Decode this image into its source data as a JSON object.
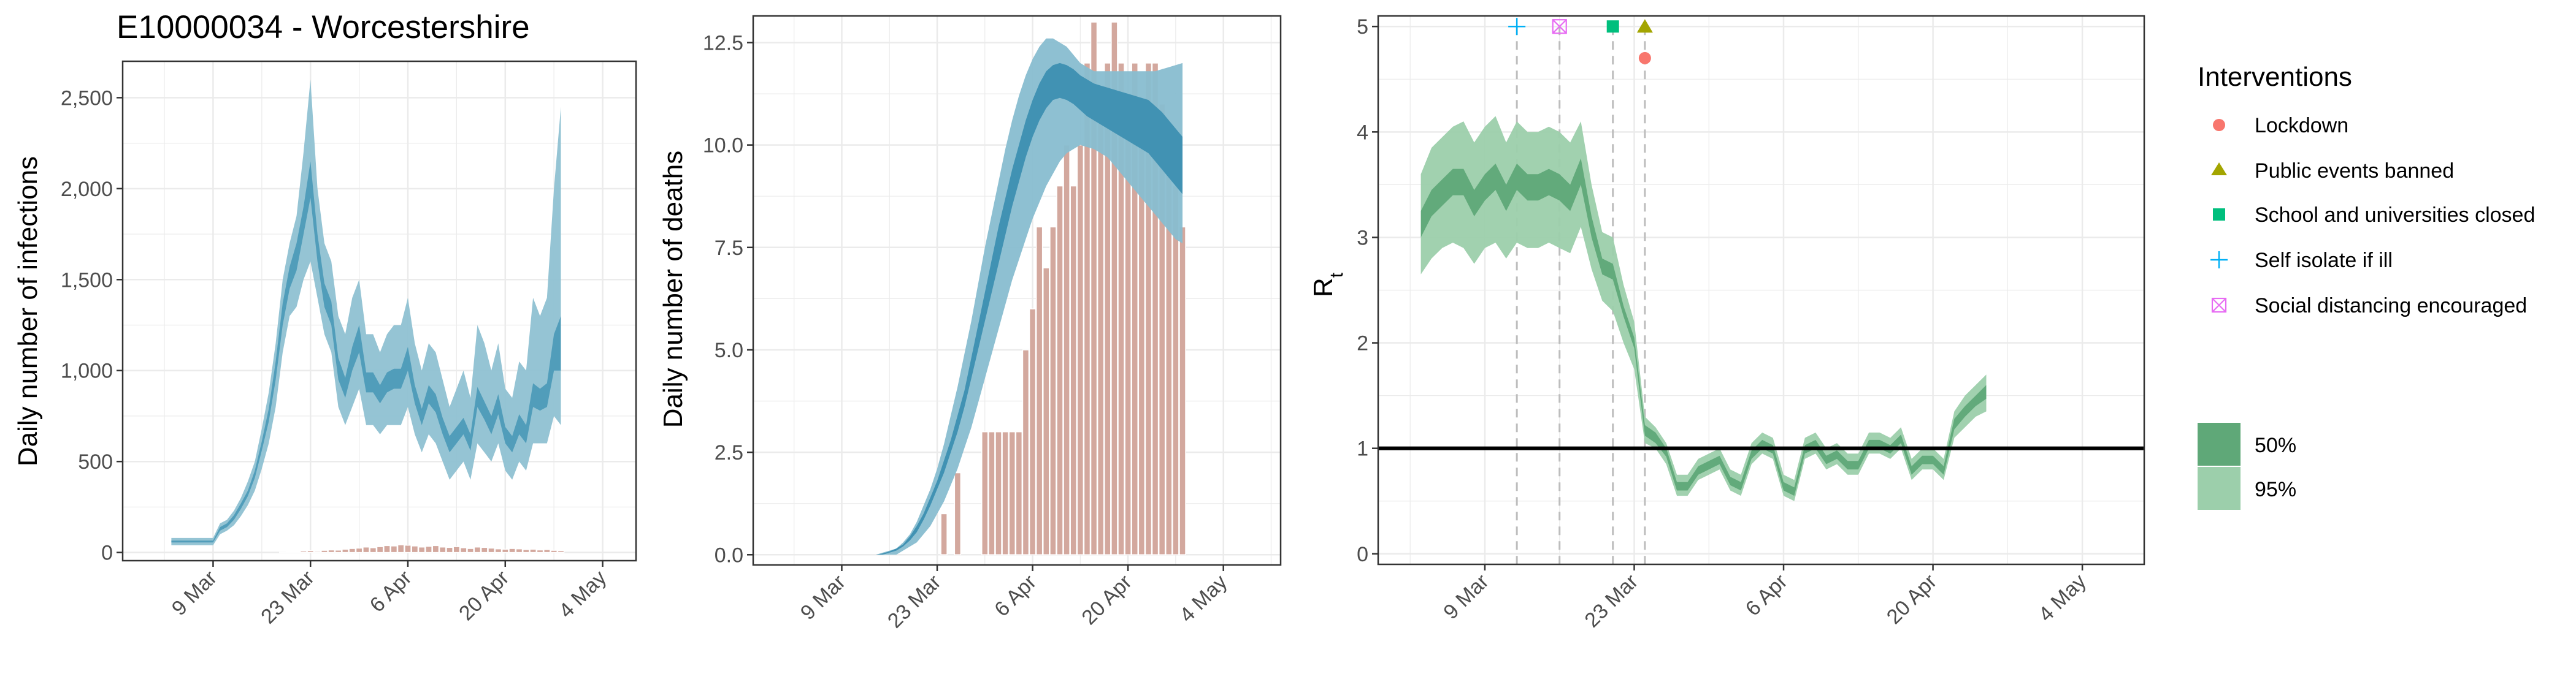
{
  "region_title": "E10000034 - Worcestershire",
  "colors": {
    "infections_95": "#8fc1d2",
    "infections_50": "#4d9bb8",
    "deaths_95": "#88bdd0",
    "deaths_50": "#3d8fb1",
    "rt_95": "#9ccfab",
    "rt_50": "#5fa878",
    "bar_fill": "#d3a89e",
    "bar_stroke": "#ffffff",
    "grid": "#ebebeb",
    "lockdown": "#f8766d",
    "public_events": "#a3a500",
    "school": "#00bf7d",
    "self_isolate": "#00b0f6",
    "social_distancing": "#e76bf3"
  },
  "legend": {
    "interventions_title": "Interventions",
    "items": [
      {
        "label": "Lockdown",
        "icon": "circle-icon"
      },
      {
        "label": "Public events banned",
        "icon": "triangle-icon"
      },
      {
        "label": "School and universities closed",
        "icon": "square-icon"
      },
      {
        "label": "Self isolate if ill",
        "icon": "plus-icon"
      },
      {
        "label": "Social distancing encouraged",
        "icon": "boxed-x-icon"
      }
    ],
    "ci_items": [
      {
        "label": "50%"
      },
      {
        "label": "95%"
      }
    ]
  },
  "chart_data": [
    {
      "type": "area",
      "panel": "infections",
      "title": "E10000034 - Worcestershire",
      "xlabel": "",
      "ylabel": "Daily number of infections",
      "x_start": "2020-02-25",
      "x_tick_labels": [
        "9 Mar",
        "23 Mar",
        "6 Apr",
        "20 Apr",
        "4 May"
      ],
      "ylim": [
        0,
        2600
      ],
      "y_ticks": [
        0,
        500,
        1000,
        1500,
        2000,
        2500
      ],
      "y_tick_labels": [
        "0",
        "500",
        "1,000",
        "1,500",
        "2,000",
        "2,500"
      ],
      "grid": true,
      "series": [
        {
          "name": "95%",
          "lower": [
            40,
            40,
            40,
            40,
            40,
            40,
            40,
            100,
            120,
            150,
            200,
            260,
            340,
            460,
            600,
            800,
            1100,
            1300,
            1350,
            1500,
            1600,
            1400,
            1200,
            1100,
            800,
            700,
            800,
            900,
            700,
            700,
            650,
            700,
            700,
            700,
            800,
            650,
            550,
            650,
            600,
            500,
            400,
            450,
            500,
            400,
            600,
            550,
            500,
            600,
            450,
            400,
            500,
            450,
            600,
            600,
            600,
            750,
            700
          ],
          "upper": [
            80,
            80,
            80,
            80,
            80,
            80,
            80,
            160,
            180,
            230,
            300,
            390,
            500,
            680,
            880,
            1150,
            1500,
            1700,
            1850,
            2200,
            2600,
            2000,
            1700,
            1600,
            1300,
            1200,
            1400,
            1500,
            1200,
            1200,
            1100,
            1200,
            1250,
            1250,
            1400,
            1150,
            1000,
            1150,
            1100,
            950,
            800,
            900,
            1000,
            850,
            1250,
            1150,
            1000,
            1150,
            900,
            850,
            1050,
            1000,
            1400,
            1300,
            1400,
            2000,
            2450
          ]
        },
        {
          "name": "50%",
          "lower": [
            55,
            55,
            55,
            55,
            55,
            55,
            55,
            120,
            140,
            180,
            240,
            310,
            410,
            560,
            720,
            950,
            1250,
            1450,
            1550,
            1750,
            1950,
            1600,
            1350,
            1250,
            950,
            850,
            1000,
            1100,
            880,
            880,
            820,
            880,
            900,
            900,
            1000,
            820,
            700,
            820,
            770,
            650,
            550,
            600,
            650,
            560,
            800,
            730,
            650,
            760,
            600,
            550,
            650,
            600,
            800,
            780,
            800,
            1000,
            1000
          ],
          "upper": [
            65,
            65,
            65,
            65,
            65,
            65,
            65,
            140,
            160,
            205,
            270,
            340,
            450,
            610,
            790,
            1050,
            1370,
            1570,
            1700,
            1900,
            2150,
            1750,
            1480,
            1380,
            1070,
            960,
            1130,
            1250,
            990,
            990,
            920,
            990,
            1010,
            1010,
            1130,
            920,
            790,
            920,
            870,
            740,
            640,
            690,
            740,
            650,
            910,
            830,
            750,
            870,
            690,
            640,
            760,
            700,
            930,
            900,
            930,
            1200,
            1300
          ]
        }
      ],
      "observed_bars": [
        0,
        0,
        0,
        0,
        0,
        0,
        0,
        0,
        0,
        0,
        0,
        0,
        0,
        0,
        0,
        0,
        1,
        3,
        5,
        8,
        10,
        6,
        12,
        14,
        13,
        18,
        22,
        24,
        30,
        26,
        32,
        38,
        36,
        42,
        40,
        36,
        30,
        34,
        38,
        30,
        28,
        32,
        26,
        22,
        30,
        28,
        24,
        20,
        18,
        22,
        20,
        16,
        18,
        14,
        16,
        12,
        10
      ]
    },
    {
      "type": "area",
      "panel": "deaths",
      "xlabel": "",
      "ylabel": "Daily number of deaths",
      "x_start": "2020-02-25",
      "x_tick_labels": [
        "9 Mar",
        "23 Mar",
        "6 Apr",
        "20 Apr",
        "4 May"
      ],
      "ylim": [
        0,
        13
      ],
      "y_ticks": [
        0,
        2.5,
        5,
        7.5,
        10,
        12.5
      ],
      "y_tick_labels": [
        "0.0",
        "2.5",
        "5.0",
        "7.5",
        "10.0",
        "12.5"
      ],
      "grid": true,
      "series": [
        {
          "name": "95%",
          "lower": [
            0,
            0,
            0,
            0,
            0,
            0,
            0,
            0,
            0,
            0,
            0,
            0,
            0,
            0,
            0,
            0.1,
            0.2,
            0.3,
            0.5,
            0.7,
            1.0,
            1.3,
            1.7,
            2.1,
            2.6,
            3.1,
            3.7,
            4.3,
            4.9,
            5.5,
            6.1,
            6.7,
            7.2,
            7.7,
            8.2,
            8.6,
            9.0,
            9.3,
            9.6,
            9.8,
            9.9,
            10.0,
            9.95,
            9.9,
            9.8,
            9.7,
            9.5,
            9.3,
            9.1,
            8.9,
            8.7,
            8.5,
            8.3,
            8.1,
            7.9,
            7.7,
            7.6
          ],
          "upper": [
            0,
            0,
            0,
            0,
            0,
            0,
            0,
            0,
            0,
            0,
            0,
            0,
            0.05,
            0.1,
            0.15,
            0.3,
            0.5,
            0.8,
            1.2,
            1.6,
            2.1,
            2.7,
            3.4,
            4.1,
            4.9,
            5.7,
            6.6,
            7.5,
            8.3,
            9.1,
            9.9,
            10.6,
            11.2,
            11.7,
            12.1,
            12.4,
            12.6,
            12.6,
            12.5,
            12.4,
            12.2,
            12.0,
            11.9,
            11.8,
            11.8,
            11.8,
            11.8,
            11.8,
            11.8,
            11.8,
            11.8,
            11.8,
            11.8,
            11.85,
            11.9,
            11.95,
            12.0
          ]
        },
        {
          "name": "50%",
          "lower": [
            0,
            0,
            0,
            0,
            0,
            0,
            0,
            0,
            0,
            0,
            0,
            0,
            0,
            0.05,
            0.1,
            0.2,
            0.35,
            0.55,
            0.85,
            1.2,
            1.6,
            2.0,
            2.5,
            3.0,
            3.6,
            4.3,
            5.0,
            5.7,
            6.4,
            7.1,
            7.8,
            8.5,
            9.1,
            9.7,
            10.2,
            10.6,
            10.9,
            11.1,
            11.15,
            11.1,
            11.0,
            10.85,
            10.7,
            10.6,
            10.5,
            10.4,
            10.3,
            10.2,
            10.1,
            10.0,
            9.9,
            9.8,
            9.6,
            9.4,
            9.2,
            9.0,
            8.8
          ],
          "upper": [
            0,
            0,
            0,
            0,
            0,
            0,
            0,
            0,
            0,
            0,
            0,
            0,
            0.03,
            0.08,
            0.15,
            0.25,
            0.45,
            0.7,
            1.0,
            1.4,
            1.8,
            2.3,
            2.8,
            3.4,
            4.0,
            4.8,
            5.6,
            6.4,
            7.2,
            8.0,
            8.7,
            9.4,
            10.0,
            10.6,
            11.1,
            11.5,
            11.8,
            11.95,
            12.0,
            11.95,
            11.85,
            11.7,
            11.6,
            11.5,
            11.45,
            11.4,
            11.35,
            11.3,
            11.25,
            11.2,
            11.15,
            11.1,
            10.95,
            10.8,
            10.6,
            10.4,
            10.2
          ]
        }
      ],
      "observed_bars": [
        0,
        0,
        0,
        0,
        0,
        0,
        0,
        0,
        0,
        0,
        0,
        0,
        0,
        0,
        0,
        0,
        0,
        0,
        0,
        0,
        0,
        1,
        0,
        2,
        0,
        0,
        0,
        3,
        3,
        3,
        3,
        3,
        3,
        5,
        6,
        8,
        7,
        8,
        9,
        10,
        9,
        10,
        12,
        13,
        11,
        12,
        13,
        12,
        11,
        12,
        11,
        12,
        12,
        11,
        10,
        9,
        8
      ]
    },
    {
      "type": "area",
      "panel": "rt",
      "xlabel": "",
      "ylabel": "R",
      "ylabel_subscript": "t",
      "x_start": "2020-02-25",
      "x_tick_labels": [
        "9 Mar",
        "23 Mar",
        "6 Apr",
        "20 Apr",
        "4 May"
      ],
      "ylim": [
        0,
        5
      ],
      "y_ticks": [
        0,
        1,
        2,
        3,
        4,
        5
      ],
      "y_tick_labels": [
        "0",
        "1",
        "2",
        "3",
        "4",
        "5"
      ],
      "grid": true,
      "reference_line": 1,
      "series": [
        {
          "name": "95%",
          "lower": [
            2.65,
            2.8,
            2.9,
            2.95,
            2.9,
            2.75,
            2.9,
            2.95,
            2.8,
            2.95,
            2.9,
            2.9,
            2.95,
            2.9,
            2.85,
            3.1,
            2.7,
            2.4,
            2.3,
            2.0,
            1.75,
            1.05,
            1.0,
            0.85,
            0.55,
            0.55,
            0.7,
            0.75,
            0.8,
            0.6,
            0.55,
            0.85,
            0.95,
            0.9,
            0.55,
            0.5,
            0.9,
            0.95,
            0.8,
            0.85,
            0.75,
            0.75,
            0.95,
            0.95,
            0.9,
            1.0,
            0.7,
            0.8,
            0.8,
            0.7,
            1.1,
            1.2,
            1.3,
            1.35
          ],
          "upper": [
            3.6,
            3.85,
            3.95,
            4.05,
            4.1,
            3.9,
            4.05,
            4.15,
            3.9,
            4.1,
            4.0,
            4.0,
            4.05,
            4.0,
            3.9,
            4.1,
            3.5,
            3.05,
            3.0,
            2.55,
            2.2,
            1.3,
            1.2,
            1.05,
            0.75,
            0.75,
            0.9,
            0.95,
            1.0,
            0.8,
            0.75,
            1.05,
            1.15,
            1.1,
            0.75,
            0.7,
            1.1,
            1.15,
            1.0,
            1.05,
            0.95,
            0.95,
            1.15,
            1.15,
            1.1,
            1.2,
            0.9,
            1.0,
            1.0,
            0.9,
            1.35,
            1.5,
            1.6,
            1.7
          ]
        },
        {
          "name": "50%",
          "lower": [
            3.0,
            3.2,
            3.3,
            3.4,
            3.4,
            3.2,
            3.35,
            3.45,
            3.25,
            3.45,
            3.35,
            3.35,
            3.4,
            3.35,
            3.25,
            3.5,
            3.0,
            2.65,
            2.6,
            2.25,
            1.95,
            1.12,
            1.05,
            0.92,
            0.6,
            0.6,
            0.75,
            0.8,
            0.85,
            0.65,
            0.6,
            0.9,
            1.0,
            0.95,
            0.6,
            0.55,
            0.95,
            1.0,
            0.85,
            0.9,
            0.8,
            0.8,
            1.0,
            1.0,
            0.95,
            1.05,
            0.75,
            0.85,
            0.85,
            0.75,
            1.18,
            1.3,
            1.4,
            1.47
          ],
          "upper": [
            3.25,
            3.45,
            3.55,
            3.65,
            3.65,
            3.45,
            3.6,
            3.7,
            3.5,
            3.7,
            3.6,
            3.6,
            3.65,
            3.6,
            3.5,
            3.75,
            3.2,
            2.8,
            2.75,
            2.35,
            2.05,
            1.22,
            1.15,
            1.0,
            0.68,
            0.68,
            0.83,
            0.88,
            0.93,
            0.73,
            0.68,
            0.98,
            1.08,
            1.03,
            0.68,
            0.63,
            1.03,
            1.08,
            0.93,
            0.98,
            0.88,
            0.88,
            1.08,
            1.08,
            1.03,
            1.13,
            0.83,
            0.93,
            0.93,
            0.83,
            1.28,
            1.4,
            1.5,
            1.6
          ]
        }
      ],
      "interventions": [
        {
          "name": "Self isolate if ill",
          "date": "2020-03-12",
          "rt_marker": 5.0
        },
        {
          "name": "Social distancing encouraged",
          "date": "2020-03-16",
          "rt_marker": 5.0
        },
        {
          "name": "School and universities closed",
          "date": "2020-03-21",
          "rt_marker": 5.0
        },
        {
          "name": "Public events banned",
          "date": "2020-03-24",
          "rt_marker": 5.0
        },
        {
          "name": "Lockdown",
          "date": "2020-03-24",
          "rt_marker": 4.7
        }
      ]
    }
  ]
}
